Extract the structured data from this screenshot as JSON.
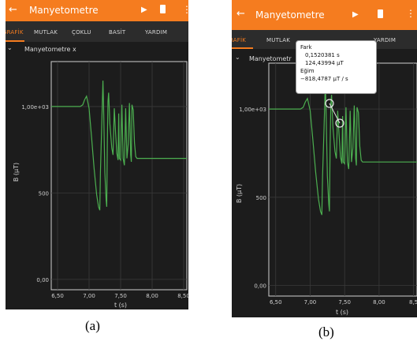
{
  "panel_a": {
    "app_title": "Manyetometre",
    "tabs": [
      "GRAFİK",
      "MUTLAK",
      "ÇOKLU",
      "BASİT",
      "YARDIM"
    ],
    "plot_title": "Manyetometre x",
    "y_ticks": [
      "1,00e+03",
      "500",
      "0,00"
    ],
    "x_ticks": [
      "6,50",
      "7,00",
      "7,50",
      "8,00",
      "8,50"
    ],
    "y_label": "B (µT)",
    "x_label": "t (s)",
    "caption": "(a)"
  },
  "panel_b": {
    "app_title": "Manyetometre",
    "tabs": [
      "RAFİK",
      "MUTLAK",
      "YARDIM"
    ],
    "plot_title": "Manyetometr",
    "y_ticks": [
      "1,00e+03",
      "500",
      "0,00"
    ],
    "x_ticks": [
      "6,50",
      "7,00",
      "7,50",
      "8,00",
      "8,5"
    ],
    "y_label": "B (µT)",
    "x_label": "t (s)",
    "tooltip": {
      "heading": "Fark",
      "dt": "0,1520381 s",
      "db": "124,43994 µT",
      "slope_label": "Eğim",
      "slope": "−818,4787 µT / s"
    },
    "caption": "(b)"
  },
  "colors": {
    "toolbar": "#f57c1f",
    "background": "#1c1c1c",
    "trace": "#4caf50",
    "accent": "#f57c1f"
  },
  "icons": [
    "back-arrow-icon",
    "play-icon",
    "trash-icon",
    "overflow-menu-icon",
    "chevron-collapse-icon"
  ],
  "chart_data": {
    "type": "line",
    "xlabel": "t (s)",
    "ylabel": "B (µT)",
    "xlim": [
      6.4,
      8.55
    ],
    "ylim": [
      -60,
      1260
    ],
    "series": [
      {
        "x": [
          6.4,
          6.86,
          6.9,
          6.93,
          6.96,
          7.0,
          7.04,
          7.08,
          7.12,
          7.15,
          7.17,
          7.18,
          7.2,
          7.22,
          7.23,
          7.25,
          7.27,
          7.28,
          7.29,
          7.3,
          7.31,
          7.33,
          7.36,
          7.38,
          7.4,
          7.42,
          7.44,
          7.46,
          7.47,
          7.48,
          7.5,
          7.52,
          7.54,
          7.56,
          7.58,
          7.6,
          7.62,
          7.64,
          7.66,
          7.67,
          7.68,
          7.7,
          7.72,
          7.74,
          7.76,
          7.78,
          7.8,
          7.85,
          7.9,
          8.0,
          8.1,
          8.2,
          8.3,
          8.55
        ],
        "y": [
          1000,
          1000,
          1010,
          1040,
          1060,
          990,
          820,
          640,
          490,
          420,
          400,
          620,
          880,
          1150,
          1000,
          620,
          460,
          420,
          800,
          1030,
          1080,
          900,
          760,
          720,
          990,
          850,
          730,
          690,
          960,
          700,
          690,
          1010,
          700,
          660,
          990,
          700,
          780,
          1020,
          720,
          680,
          1010,
          980,
          790,
          710,
          700,
          700,
          700,
          700,
          700,
          700,
          700,
          700,
          700,
          700
        ]
      }
    ]
  }
}
